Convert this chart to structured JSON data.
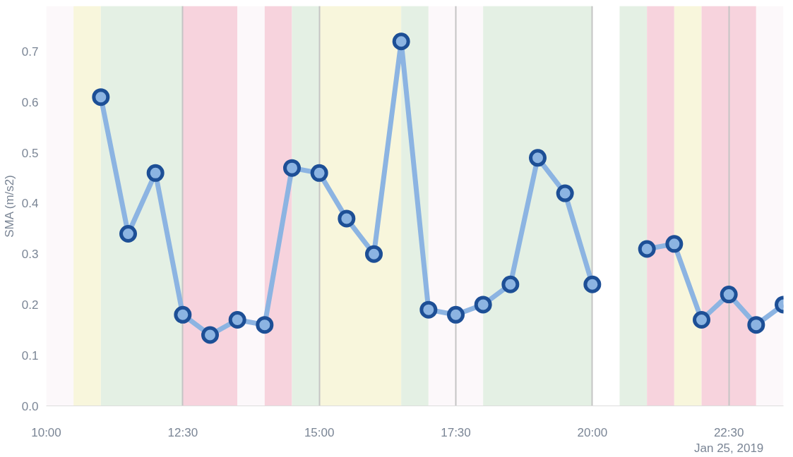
{
  "chart_data": {
    "type": "line",
    "ylabel": "SMA (m/s2)",
    "x": [
      "2019-01-25T11:00",
      "2019-01-25T11:30",
      "2019-01-25T12:00",
      "2019-01-25T12:30",
      "2019-01-25T13:00",
      "2019-01-25T13:30",
      "2019-01-25T14:00",
      "2019-01-25T14:30",
      "2019-01-25T15:00",
      "2019-01-25T15:30",
      "2019-01-25T16:00",
      "2019-01-25T16:30",
      "2019-01-25T17:00",
      "2019-01-25T17:30",
      "2019-01-25T18:00",
      "2019-01-25T18:30",
      "2019-01-25T19:00",
      "2019-01-25T19:30",
      "2019-01-25T20:00",
      "2019-01-25T20:30",
      "2019-01-25T21:00",
      "2019-01-25T21:30",
      "2019-01-25T22:00",
      "2019-01-25T22:30",
      "2019-01-25T23:00",
      "2019-01-25T23:30"
    ],
    "series": [
      {
        "color": "#8cb4e2",
        "values": [
          0.61,
          0.34,
          0.46,
          0.18,
          0.14,
          0.17,
          0.16,
          0.47,
          0.46,
          0.37,
          0.3,
          0.72,
          0.19,
          0.18,
          0.2,
          0.24,
          0.49,
          0.42,
          0.24,
          null,
          0.31,
          0.32,
          0.17,
          0.22,
          0.16,
          0.2
        ]
      }
    ],
    "marker": "circle",
    "xlim": [
      "2019-01-25T10:00",
      "2019-01-25T23:30"
    ],
    "xticks": [
      {
        "value": "2019-01-25T10:00",
        "label": "10:00"
      },
      {
        "value": "2019-01-25T12:30",
        "label": "12:30"
      },
      {
        "value": "2019-01-25T15:00",
        "label": "15:00"
      },
      {
        "value": "2019-01-25T17:30",
        "label": "17:30"
      },
      {
        "value": "2019-01-25T20:00",
        "label": "20:00"
      },
      {
        "value": "2019-01-25T22:30",
        "label": "22:30\nJan 25, 2019"
      }
    ],
    "ylim": [
      0,
      0.79
    ],
    "yticks": [
      {
        "value": 0,
        "label": "0.0"
      },
      {
        "value": 0.1,
        "label": "0.1"
      },
      {
        "value": 0.2,
        "label": "0.2"
      },
      {
        "value": 0.3,
        "label": "0.3"
      },
      {
        "value": 0.4,
        "label": "0.4"
      },
      {
        "value": 0.5,
        "label": "0.5"
      },
      {
        "value": 0.6,
        "label": "0.6"
      },
      {
        "value": 0.7,
        "label": "0.7"
      }
    ],
    "grid": "x",
    "bands": [
      {
        "axis": "x",
        "from": "2019-01-25T10:00",
        "to": "2019-01-25T10:30",
        "color": "#fcf8fa"
      },
      {
        "axis": "x",
        "from": "2019-01-25T10:30",
        "to": "2019-01-25T11:00",
        "color": "#f8f6dc"
      },
      {
        "axis": "x",
        "from": "2019-01-25T11:00",
        "to": "2019-01-25T12:30",
        "color": "#e4f0e4"
      },
      {
        "axis": "x",
        "from": "2019-01-25T12:30",
        "to": "2019-01-25T13:30",
        "color": "#f7d3dd"
      },
      {
        "axis": "x",
        "from": "2019-01-25T13:30",
        "to": "2019-01-25T14:00",
        "color": "#fcf8fa"
      },
      {
        "axis": "x",
        "from": "2019-01-25T14:00",
        "to": "2019-01-25T14:30",
        "color": "#f7d3dd"
      },
      {
        "axis": "x",
        "from": "2019-01-25T14:30",
        "to": "2019-01-25T15:00",
        "color": "#e4f0e4"
      },
      {
        "axis": "x",
        "from": "2019-01-25T15:00",
        "to": "2019-01-25T16:30",
        "color": "#f8f6dc"
      },
      {
        "axis": "x",
        "from": "2019-01-25T16:30",
        "to": "2019-01-25T17:00",
        "color": "#e4f0e4"
      },
      {
        "axis": "x",
        "from": "2019-01-25T17:00",
        "to": "2019-01-25T18:00",
        "color": "#fcf8fa"
      },
      {
        "axis": "x",
        "from": "2019-01-25T18:00",
        "to": "2019-01-25T20:00",
        "color": "#e4f0e4"
      },
      {
        "axis": "x",
        "from": "2019-01-25T20:30",
        "to": "2019-01-25T21:00",
        "color": "#e4f0e4"
      },
      {
        "axis": "x",
        "from": "2019-01-25T21:00",
        "to": "2019-01-25T21:30",
        "color": "#f7d3dd"
      },
      {
        "axis": "x",
        "from": "2019-01-25T21:30",
        "to": "2019-01-25T22:00",
        "color": "#f8f6dc"
      },
      {
        "axis": "x",
        "from": "2019-01-25T22:00",
        "to": "2019-01-25T23:00",
        "color": "#f7d3dd"
      },
      {
        "axis": "x",
        "from": "2019-01-25T23:00",
        "to": "2019-01-25T23:30",
        "color": "#fcf8fa"
      }
    ]
  }
}
